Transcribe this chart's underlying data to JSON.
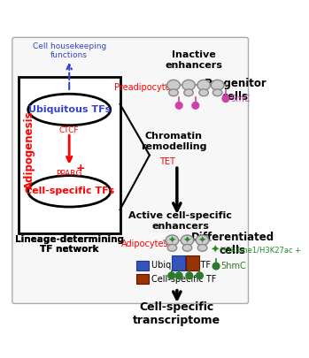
{
  "ubiq_label": "Ubiquitous TFs",
  "cell_label": "Cell-specific TFs",
  "ctcf_label": "CTCF",
  "pparg_label": "PPARG",
  "adipogenesis_label": "Adipogenesis",
  "housekeeping_label": "Cell housekeeping\nfunctions",
  "preadipocytes_label": "Preadipocytes",
  "adipocytes_label": "Adipocytes",
  "inactive_enhancers_label": "Inactive\nenhancers",
  "progenitor_cells_label": "Progenitor\ncells",
  "chromatin_label": "Chromatin\nremodelling",
  "tet_label": "TET",
  "active_enhancers_label": "Active cell-specific\nenhancers",
  "differentiated_label": "Differentiated\ncells",
  "transcriptome_label": "Cell-specific\ntranscriptome",
  "ubiq_tf_legend": "Ubiquitous TF",
  "cell_tf_legend": "Cell-specific TF",
  "h3k4_legend": "H3K4me1/H3K27ac +",
  "hmc_legend": "5hmC",
  "smc_legend": "5mC",
  "red": "#ff0000",
  "blue_label": "#3344cc",
  "black": "#000000",
  "magenta": "#cc44aa",
  "green": "#228B22",
  "ubiq_tf_color": "#3355bb",
  "cell_tf_color": "#993300",
  "green_dark": "#2d7a2d",
  "gray_nuc": "#bbbbbb",
  "gray_nuc_edge": "#888888"
}
